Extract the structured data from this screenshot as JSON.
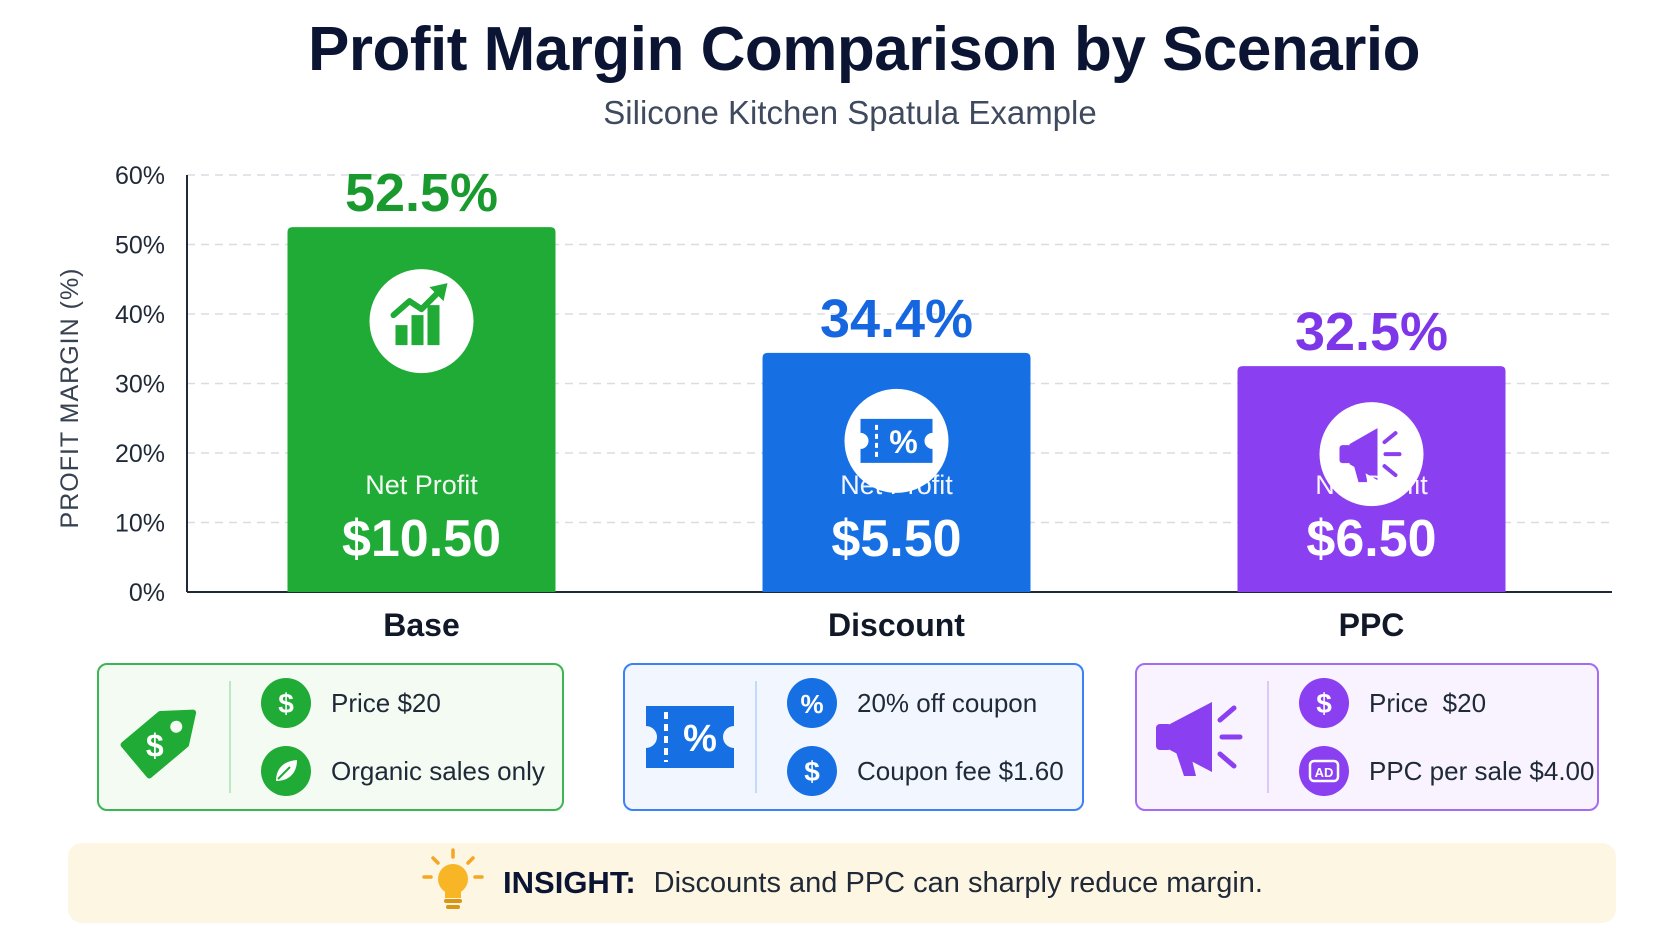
{
  "title": "Profit Margin Comparison by Scenario",
  "subtitle": "Silicone Kitchen Spatula Example",
  "chart_data": {
    "type": "bar",
    "ylabel": "PROFIT MARGIN (%)",
    "ylim": [
      0,
      60
    ],
    "yticks": [
      "0%",
      "10%",
      "20%",
      "30%",
      "40%",
      "50%",
      "60%"
    ],
    "grid": true,
    "categories": [
      "Base",
      "Discount",
      "PPC"
    ],
    "values": [
      52.5,
      34.4,
      32.5
    ],
    "value_labels": [
      "52.5%",
      "34.4%",
      "32.5%"
    ],
    "net_profit_label": "Net Profit",
    "net_profit": [
      "$10.50",
      "$5.50",
      "$6.50"
    ],
    "colors": [
      "#1fab35",
      "#1670e4",
      "#8a3ff0"
    ],
    "label_colors": [
      "#1a9a2e",
      "#1667df",
      "#7e37e8"
    ],
    "icons": [
      "growth-chart-icon",
      "coupon-icon",
      "megaphone-icon"
    ]
  },
  "cards": [
    {
      "big_icon": "price-tag-icon",
      "rows": [
        {
          "icon": "dollar-icon",
          "text": "Price $20"
        },
        {
          "icon": "leaf-icon",
          "text": "Organic sales only"
        }
      ]
    },
    {
      "big_icon": "coupon-icon",
      "rows": [
        {
          "icon": "percent-icon",
          "text": "20% off coupon"
        },
        {
          "icon": "dollar-icon",
          "text": "Coupon fee $1.60"
        }
      ]
    },
    {
      "big_icon": "megaphone-icon",
      "rows": [
        {
          "icon": "dollar-icon",
          "text": "Price  $20"
        },
        {
          "icon": "ad-icon",
          "text": "PPC per sale $4.00"
        }
      ]
    }
  ],
  "insight": {
    "icon": "lightbulb-icon",
    "label": "INSIGHT:",
    "text": "Discounts and PPC can sharply reduce margin."
  }
}
